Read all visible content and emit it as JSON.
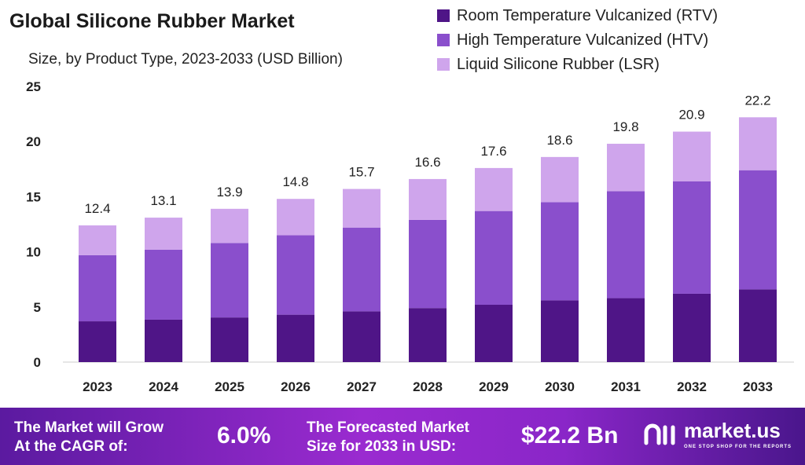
{
  "chart_data": {
    "type": "bar",
    "stacked": true,
    "title": "Global Silicone Rubber Market",
    "subtitle": "Size, by Product Type, 2023-2033 (USD Billion)",
    "categories": [
      "2023",
      "2024",
      "2025",
      "2026",
      "2027",
      "2028",
      "2029",
      "2030",
      "2031",
      "2032",
      "2033"
    ],
    "series": [
      {
        "name": "Room Temperature Vulcanized (RTV)",
        "color": "#4f1587",
        "values": [
          3.7,
          3.85,
          4.05,
          4.3,
          4.6,
          4.9,
          5.2,
          5.6,
          5.8,
          6.2,
          6.6
        ]
      },
      {
        "name": "High Temperature Vulcanized (HTV)",
        "color": "#8a4fcc",
        "values": [
          6.0,
          6.35,
          6.75,
          7.2,
          7.6,
          8.0,
          8.5,
          8.9,
          9.7,
          10.2,
          10.8
        ]
      },
      {
        "name": "Liquid Silicone Rubber (LSR)",
        "color": "#cfa5ec",
        "values": [
          2.7,
          2.9,
          3.1,
          3.3,
          3.5,
          3.7,
          3.9,
          4.1,
          4.3,
          4.5,
          4.8
        ]
      }
    ],
    "totals": [
      "12.4",
      "13.1",
      "13.9",
      "14.8",
      "15.7",
      "16.6",
      "17.6",
      "18.6",
      "19.8",
      "20.9",
      "22.2"
    ],
    "ylim": [
      0,
      25
    ],
    "yticks": [
      "0",
      "5",
      "10",
      "15",
      "20",
      "25"
    ],
    "grid": false,
    "legend": "top-right"
  },
  "footer": {
    "cagr_label_1": "The Market will Grow",
    "cagr_label_2": "At the CAGR of:",
    "cagr_value": "6.0%",
    "size_label_1": "The Forecasted Market",
    "size_label_2": "Size for 2033 in USD:",
    "size_value": "$22.2 Bn",
    "logo_name": "market.us",
    "logo_tagline": "ONE STOP SHOP FOR THE REPORTS"
  }
}
